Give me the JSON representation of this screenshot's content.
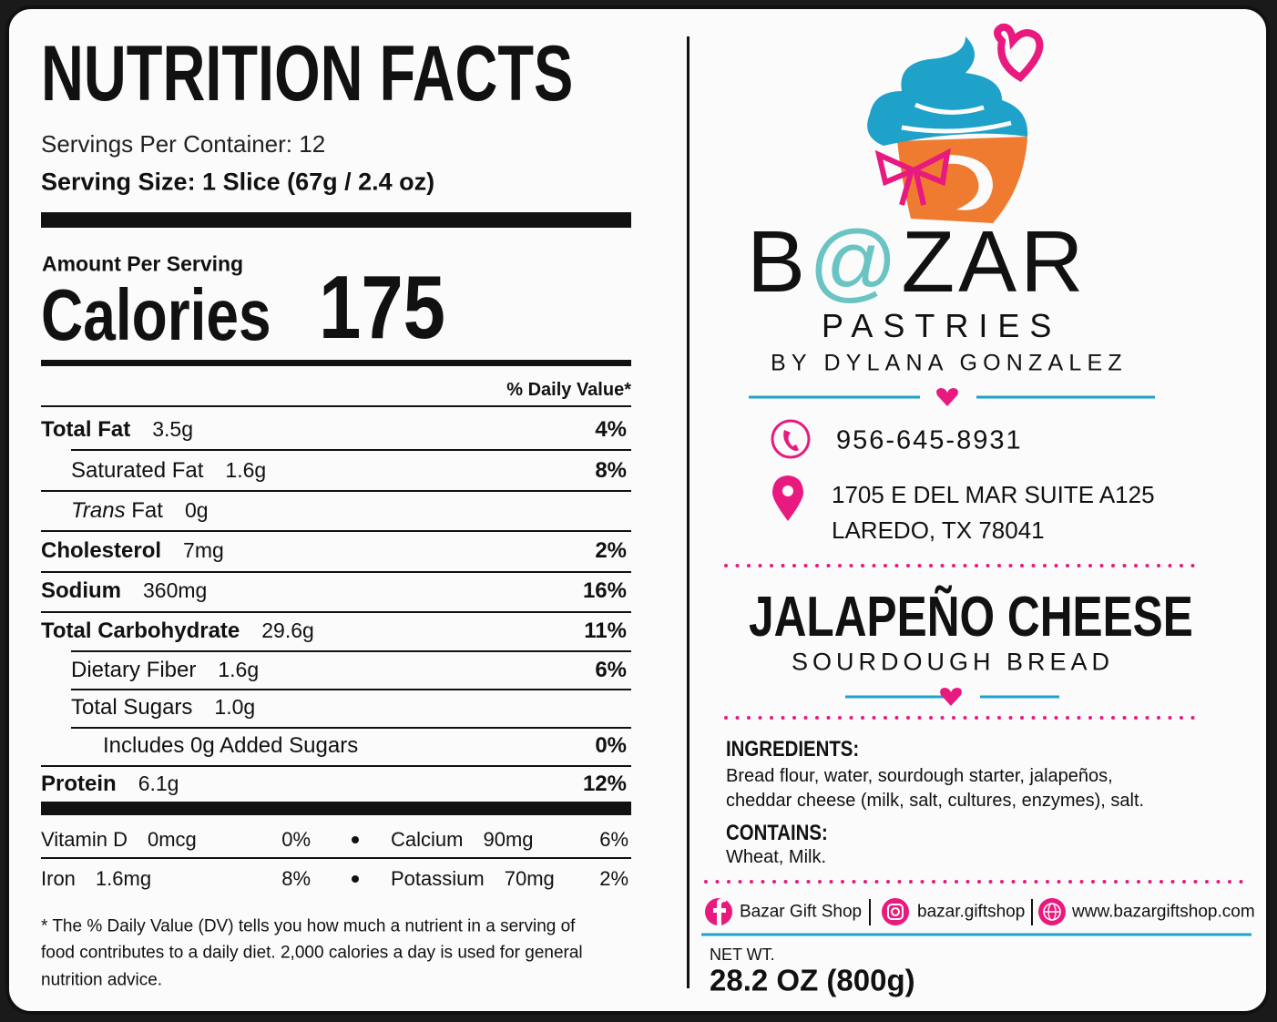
{
  "nutrition": {
    "title": "NUTRITION FACTS",
    "servings_per_container": "Servings Per Container: 12",
    "serving_size": "Serving Size: 1 Slice (67g / 2.4 oz)",
    "amount_per_serving": "Amount Per Serving",
    "calories_label": "Calories",
    "calories": "175",
    "daily_value_header": "% Daily Value*",
    "rows": [
      {
        "name": "Total Fat",
        "amount": "3.5g",
        "dv": "4%"
      },
      {
        "name": "Saturated Fat",
        "amount": "1.6g",
        "dv": "8%"
      },
      {
        "name_italic": "Trans",
        "name": "Fat",
        "amount": "0g"
      },
      {
        "name": "Cholesterol",
        "amount": "7mg",
        "dv": "2%"
      },
      {
        "name": "Sodium",
        "amount": "360mg",
        "dv": "16%"
      },
      {
        "name": "Total Carbohydrate",
        "amount": "29.6g",
        "dv": "11%"
      },
      {
        "name": "Dietary Fiber",
        "amount": "1.6g",
        "dv": "6%"
      },
      {
        "name": "Total Sugars",
        "amount": "1.0g"
      },
      {
        "name": "Includes 0g Added Sugars",
        "dv": "0%"
      },
      {
        "name": "Protein",
        "amount": "6.1g",
        "dv": "12%"
      }
    ],
    "vitamins": [
      [
        {
          "name": "Vitamin D",
          "amount": "0mcg",
          "dv": "0%"
        },
        {
          "name": "Calcium",
          "amount": "90mg",
          "dv": "6%"
        }
      ],
      [
        {
          "name": "Iron",
          "amount": "1.6mg",
          "dv": "8%"
        },
        {
          "name": "Potassium",
          "amount": "70mg",
          "dv": "2%"
        }
      ]
    ],
    "footnote": [
      "* The % Daily Value (DV) tells you how much a nutrient in a serving of",
      "food contributes to a daily diet. 2,000 calories a day is used for general",
      "nutrition advice."
    ]
  },
  "brand": {
    "logo": [
      "B",
      "@",
      "ZAR"
    ],
    "tagline": "PASTRIES",
    "owner": "BY DYLANA GONZALEZ",
    "phone": "956-645-8931",
    "address": [
      "1705 E DEL MAR SUITE A125",
      "LAREDO, TX 78041"
    ]
  },
  "product": {
    "name": "JALAPEÑO CHEESE",
    "subtitle": "SOURDOUGH BREAD",
    "ingredients_heading": "INGREDIENTS:",
    "ingredients": [
      "Bread flour, water, sourdough starter, jalapeños,",
      "cheddar cheese (milk, salt, cultures, enzymes), salt."
    ],
    "contains_heading": "CONTAINS:",
    "contains": "Wheat, Milk.",
    "net_weight_label": "NET WT.",
    "net_weight": "28.2 OZ (800g)"
  },
  "social": {
    "facebook": "Bazar Gift Shop",
    "instagram": "bazar.giftshop",
    "website": "www.bazargiftshop.com"
  }
}
